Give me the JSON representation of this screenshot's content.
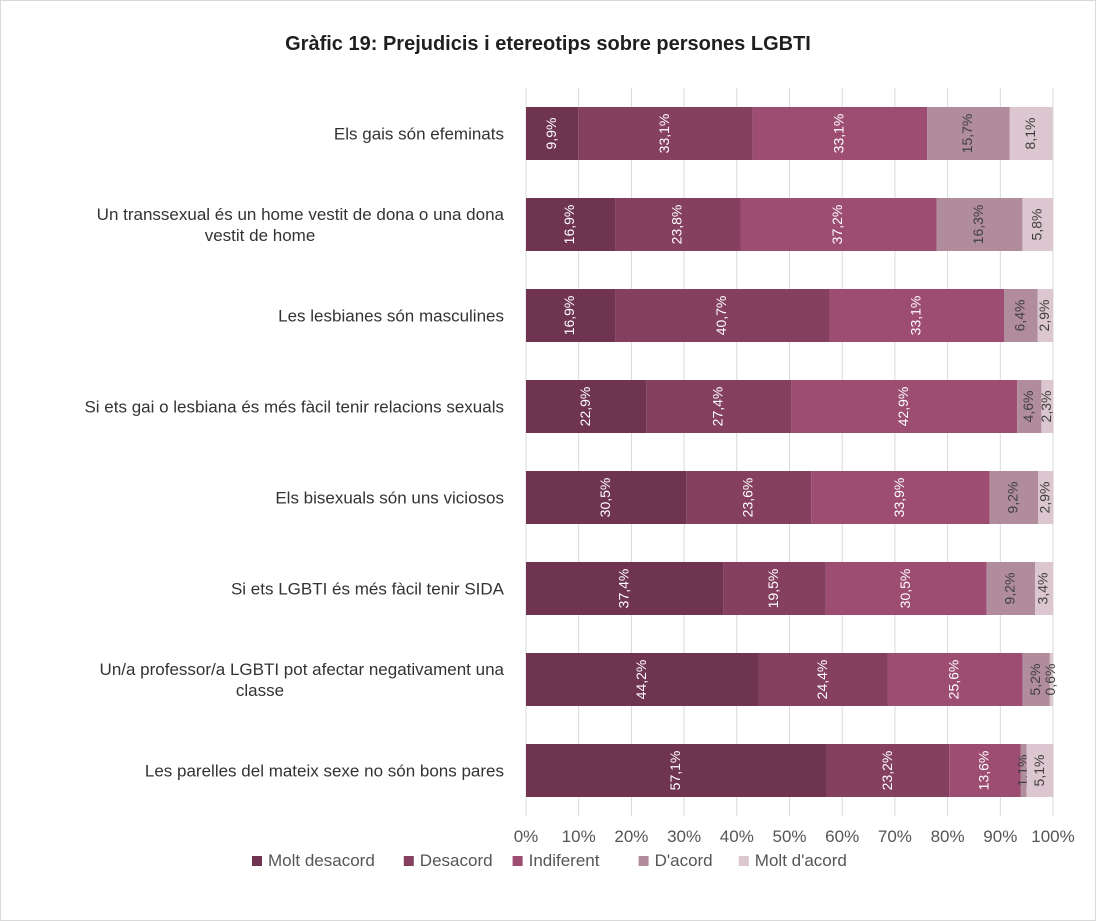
{
  "chart_data": {
    "type": "bar",
    "orientation": "horizontal",
    "stacked": "percent",
    "title": "Gràfic 19: Prejudicis i etereotips sobre persones LGBTI",
    "categories": [
      [
        "Els gais són efeminats"
      ],
      [
        "Un transsexual és un home vestit de dona o una dona",
        "vestit de home"
      ],
      [
        "Les lesbianes són masculines"
      ],
      [
        "Si ets gai o lesbiana és més fàcil tenir relacions sexuals"
      ],
      [
        "Els bisexuals són uns viciosos"
      ],
      [
        "Si ets LGBTI és més fàcil tenir SIDA"
      ],
      [
        "Un/a professor/a LGBTI pot afectar negativament una",
        "classe"
      ],
      [
        "Les parelles del mateix sexe no són bons pares"
      ]
    ],
    "series": [
      {
        "name": "Molt desacord",
        "color": "#6e3450",
        "label_color": "#ffffff",
        "values": [
          9.9,
          16.9,
          16.9,
          22.9,
          30.5,
          37.4,
          44.2,
          57.1
        ],
        "labels": [
          "9,9%",
          "16,9%",
          "16,9%",
          "22,9%",
          "30,5%",
          "37,4%",
          "44,2%",
          "57,1%"
        ]
      },
      {
        "name": "Desacord",
        "color": "#84405e",
        "label_color": "#ffffff",
        "values": [
          33.1,
          23.8,
          40.7,
          27.4,
          23.6,
          19.5,
          24.4,
          23.2
        ],
        "labels": [
          "33,1%",
          "23,8%",
          "40,7%",
          "27,4%",
          "23,6%",
          "19,5%",
          "24,4%",
          "23,2%"
        ]
      },
      {
        "name": "Indiferent",
        "color": "#9c4d71",
        "label_color": "#ffffff",
        "values": [
          33.1,
          37.2,
          33.1,
          42.9,
          33.9,
          30.5,
          25.6,
          13.6
        ],
        "labels": [
          "33,1%",
          "37,2%",
          "33,1%",
          "42,9%",
          "33,9%",
          "30,5%",
          "25,6%",
          "13,6%"
        ]
      },
      {
        "name": "D'acord",
        "color": "#b18c9c",
        "label_color": "#404040",
        "values": [
          15.7,
          16.3,
          6.4,
          4.6,
          9.2,
          9.2,
          5.2,
          1.1
        ],
        "labels": [
          "15,7%",
          "16,3%",
          "6,4%",
          "4,6%",
          "9,2%",
          "9,2%",
          "5,2%",
          "1,1%"
        ]
      },
      {
        "name": "Molt d'acord",
        "color": "#dcc6cf",
        "label_color": "#404040",
        "values": [
          8.1,
          5.8,
          2.9,
          2.3,
          2.9,
          3.4,
          0.6,
          5.1
        ],
        "labels": [
          "8,1%",
          "5,8%",
          "2,9%",
          "2,3%",
          "2,9%",
          "3,4%",
          "0,6%",
          "5,1%"
        ]
      }
    ],
    "xlim": [
      0,
      100
    ],
    "xticks": [
      "0%",
      "10%",
      "20%",
      "30%",
      "40%",
      "50%",
      "60%",
      "70%",
      "80%",
      "90%",
      "100%"
    ],
    "grid": true,
    "legend": "bottom"
  }
}
